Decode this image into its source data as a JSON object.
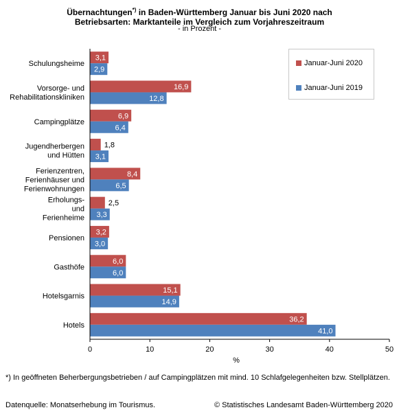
{
  "header": {
    "title_line1": "Übernachtungen",
    "title_sup": "*)",
    "title_line1_rest": " in Baden-Württemberg Januar bis Juni 2020 nach",
    "title_line2": "Betriebsarten: Marktanteile im Vergleich zum Vorjahreszeitraum",
    "subtitle": "- in Prozent -"
  },
  "footnote": "*) In geöffneten Beherbergungsbetrieben / auf Campingplätzen  mit mind. 10 Schlafgelegenheiten bzw. Stellplätzen.",
  "source": "Datenquelle: Monatserhebung im Tourismus.",
  "copyright": "© Statistisches Landesamt Baden-Württemberg 2020",
  "chart_data": {
    "type": "bar",
    "orientation": "horizontal",
    "categories": [
      [
        "Schulungsheime"
      ],
      [
        "Vorsorge- und",
        "Rehabilitationskliniken"
      ],
      [
        "Campingplätze"
      ],
      [
        "Jugendherbergen",
        "und Hütten"
      ],
      [
        "Ferienzentren,",
        "Ferienhäuser und",
        "Ferienwohnungen"
      ],
      [
        "Erholungs-",
        "und",
        "Ferienheime"
      ],
      [
        "Pensionen"
      ],
      [
        "Gasthöfe"
      ],
      [
        "Hotelsgarnis"
      ],
      [
        "Hotels"
      ]
    ],
    "series": [
      {
        "name": "Januar-Juni 2020",
        "color": "#c0504d",
        "values": [
          3.1,
          16.9,
          6.9,
          1.8,
          8.4,
          2.5,
          3.2,
          6.0,
          15.1,
          36.2
        ],
        "labels": [
          "3,1",
          "16,9",
          "6,9",
          "1,8",
          "8,4",
          "2,5",
          "3,2",
          "6,0",
          "15,1",
          "36,2"
        ]
      },
      {
        "name": "Januar-Juni 2019",
        "color": "#4f81bd",
        "values": [
          2.9,
          12.8,
          6.4,
          3.1,
          6.5,
          3.3,
          3.0,
          6.0,
          14.9,
          41.0
        ],
        "labels": [
          "2,9",
          "12,8",
          "6,4",
          "3,1",
          "6,5",
          "3,3",
          "3,0",
          "6,0",
          "14,9",
          "41,0"
        ]
      }
    ],
    "xlim": [
      0,
      50
    ],
    "xticks": [
      "0",
      "10",
      "20",
      "30",
      "40",
      "50"
    ],
    "xlabel": "%",
    "legend_position": "top-right",
    "grid": false
  }
}
